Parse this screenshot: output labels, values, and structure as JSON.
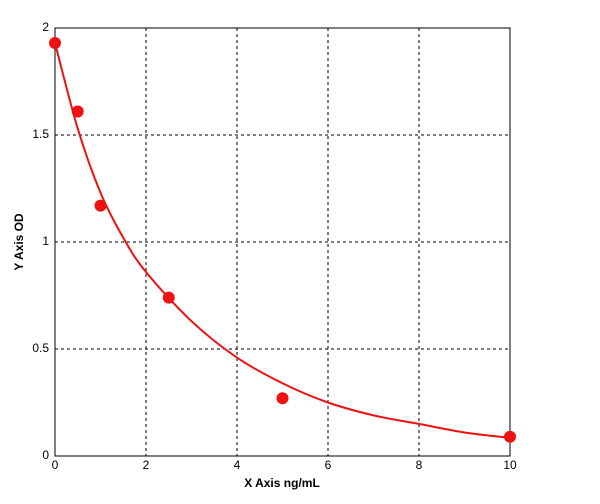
{
  "chart_data": {
    "type": "scatter",
    "x_label": "X Axis ng/mL",
    "y_label": "Y Axis OD",
    "xlim": [
      0,
      10
    ],
    "ylim": [
      0,
      2
    ],
    "xticks": [
      0,
      2,
      4,
      6,
      8,
      10
    ],
    "yticks": [
      0,
      0.5,
      1,
      1.5,
      2
    ],
    "grid": true,
    "series": [
      {
        "type": "line",
        "color": "#ee1111",
        "x": [
          0,
          0.5,
          1,
          1.5,
          2,
          3,
          4,
          5,
          6,
          7,
          8,
          9,
          10
        ],
        "values": [
          1.93,
          1.53,
          1.23,
          1.02,
          0.86,
          0.63,
          0.46,
          0.34,
          0.25,
          0.19,
          0.15,
          0.11,
          0.085
        ]
      },
      {
        "type": "scatter",
        "color": "#ee1111",
        "x": [
          0,
          0.5,
          1,
          2.5,
          5,
          10
        ],
        "values": [
          1.93,
          1.61,
          1.17,
          0.74,
          0.27,
          0.09
        ]
      }
    ]
  }
}
